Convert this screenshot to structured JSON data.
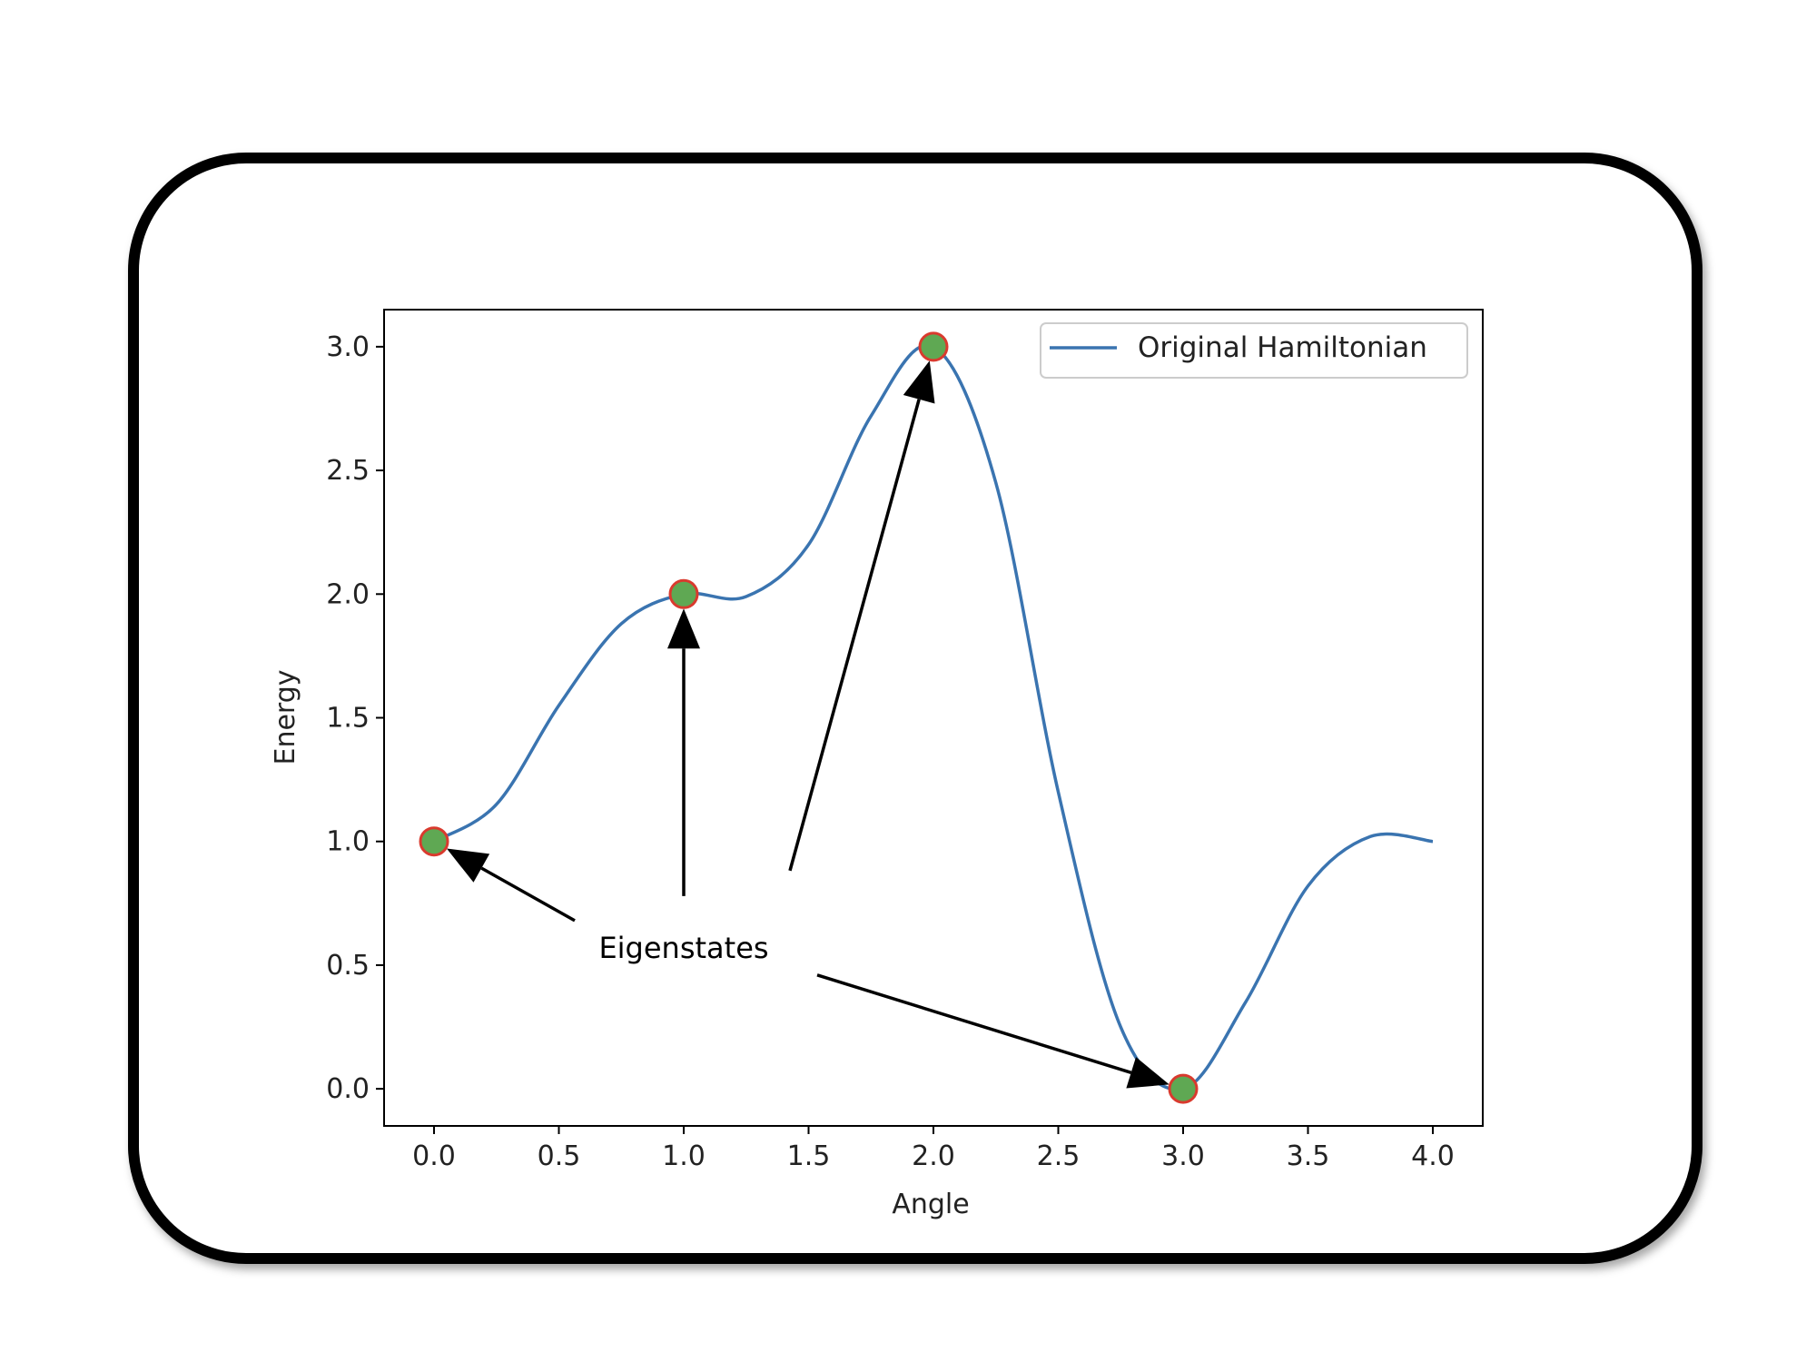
{
  "chart_data": {
    "type": "line",
    "xlabel": "Angle",
    "ylabel": "Energy",
    "xlim": [
      -0.2,
      4.2
    ],
    "ylim": [
      -0.15,
      3.15
    ],
    "xticks": [
      "0.0",
      "0.5",
      "1.0",
      "1.5",
      "2.0",
      "2.5",
      "3.0",
      "3.5",
      "4.0"
    ],
    "yticks": [
      "0.0",
      "0.5",
      "1.0",
      "1.5",
      "2.0",
      "2.5",
      "3.0"
    ],
    "grid": false,
    "legend": "top-right",
    "series": [
      {
        "name": "Original Hamiltonian",
        "color": "#3a74b0",
        "x": [
          0.0,
          0.25,
          0.5,
          0.75,
          1.0,
          1.25,
          1.5,
          1.75,
          2.0,
          2.25,
          2.5,
          2.75,
          3.0,
          3.25,
          3.5,
          3.75,
          4.0
        ],
        "y": [
          1.0,
          1.15,
          1.55,
          1.88,
          2.0,
          1.99,
          2.2,
          2.72,
          3.0,
          2.45,
          1.2,
          0.25,
          0.0,
          0.35,
          0.82,
          1.02,
          1.0
        ]
      }
    ],
    "markers": {
      "x": [
        0.0,
        1.0,
        2.0,
        3.0
      ],
      "y": [
        1.0,
        2.0,
        3.0,
        0.0
      ],
      "fill": "#5fa853",
      "edge": "#d93a2e"
    },
    "annotation": {
      "text": "Eigenstates",
      "x": 1.0,
      "y": 0.57,
      "targets": [
        {
          "x": 0.0,
          "y": 1.0
        },
        {
          "x": 1.0,
          "y": 2.0
        },
        {
          "x": 2.0,
          "y": 3.0
        },
        {
          "x": 3.0,
          "y": 0.0
        }
      ]
    }
  }
}
